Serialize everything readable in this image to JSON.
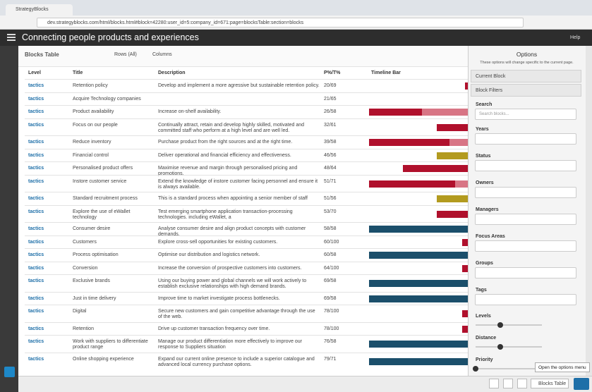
{
  "browser": {
    "tab": "StrategyBlocks",
    "url": "dev.strategyblocks.com/html/blocks.html#block=42280:user_id=5:company_id=671:page=blocksTable:section=blocks"
  },
  "header": {
    "title": "Connecting people products and experiences",
    "help": "Help"
  },
  "table": {
    "title": "Blocks Table",
    "rows_menu": "Rows (All)",
    "columns_menu": "Columns",
    "columns": [
      "Level",
      "Title",
      "Description",
      "P%/T%",
      "Timeline Bar"
    ],
    "rows": [
      {
        "level": "tactics",
        "title": "Retention policy",
        "description": "Develop and implement a more agressive but sustainable retention policy.",
        "progress": "20/69"
      },
      {
        "level": "tactics",
        "title": "Acquire Technology companies",
        "progress": "21/65"
      },
      {
        "level": "tactics",
        "title": "Product availability",
        "description": "Increase on-shelf availability.",
        "progress": "26/58"
      },
      {
        "level": "tactics",
        "title": "Focus on our people",
        "description": "Continually attract, retain and develop highly skilled, motivated and committed staff who perform at a high level and are well led.",
        "progress": "32/61"
      },
      {
        "level": "tactics",
        "title": "Reduce inventory",
        "description": "Purchase product from the right sources and at the right time.",
        "progress": "39/58"
      },
      {
        "level": "tactics",
        "title": "Financial control",
        "description": "Deliver operational and financial efficiency and effectiveness.",
        "progress": "46/56"
      },
      {
        "level": "tactics",
        "title": "Personalised product offers",
        "description": "Maximise revenue and margin through personalised pricing and promotions.",
        "progress": "48/64"
      },
      {
        "level": "tactics",
        "title": "Instore customer service",
        "description": "Extend the knowledge of instore customer facing personnel and ensure it is always available.",
        "progress": "51/71"
      },
      {
        "level": "tactics",
        "title": "Standard recruitment process",
        "description": "This is a standard process when appointing a senior member of staff",
        "progress": "51/56"
      },
      {
        "level": "tactics",
        "title": "Explore the use of eWallet technology",
        "description": "Test emerging smartphone application transaction-processing technologies. including eWallet, a",
        "progress": "53/70"
      },
      {
        "level": "tactics",
        "title": "Consumer desire",
        "description": "Analyse consumer desire and align product concepts with customer demands.",
        "progress": "58/58"
      },
      {
        "level": "tactics",
        "title": "Customers",
        "description": "Explore cross-sell opportunities for existing customers.",
        "progress": "60/100"
      },
      {
        "level": "tactics",
        "title": "Process optimisation",
        "description": "Optimise our distribution and logistics network.",
        "progress": "60/58"
      },
      {
        "level": "tactics",
        "title": "Conversion",
        "description": "Increase the conversion of prospective customers into customers.",
        "progress": "64/100"
      },
      {
        "level": "tactics",
        "title": "Exclusive brands",
        "description": "Using our buying power and global channels we will work actively to establish exclusive relationships with high demand brands.",
        "progress": "69/58"
      },
      {
        "level": "tactics",
        "title": "Just in time delivery",
        "description": "Improve time to market investigate process bottlenecks.",
        "progress": "69/58"
      },
      {
        "level": "tactics",
        "title": "Digital",
        "description": "Secure new customers and gain competitive advantage through the use of the web.",
        "progress": "78/100"
      },
      {
        "level": "tactics",
        "title": "Retention",
        "description": "Drive up customer transaction frequency over time.",
        "progress": "78/100"
      },
      {
        "level": "tactics",
        "title": "Work with suppliers to differentiate product range",
        "description": "Manage our product differentiation more effectively to improve our response to Suppliers situation",
        "progress": "76/58"
      },
      {
        "level": "tactics",
        "title": "Online shopping experience",
        "description": "Expand our current online presence to include a superior catalogue and advanced local currency purchase options.",
        "progress": "79/71"
      }
    ]
  },
  "options": {
    "title": "Options",
    "subtitle": "These options will change specific to the current page.",
    "sections": [
      "Current Block",
      "Block Filters"
    ],
    "search_label": "Search",
    "search_placeholder": "Search blocks...",
    "filters": [
      "Years",
      "Status",
      "Owners",
      "Managers",
      "Focus Areas",
      "Groups",
      "Tags"
    ],
    "sliders": [
      "Levels",
      "Distance",
      "Priority"
    ]
  },
  "footer": {
    "view_button": "Blocks Table",
    "tooltip": "Open the options menu"
  }
}
